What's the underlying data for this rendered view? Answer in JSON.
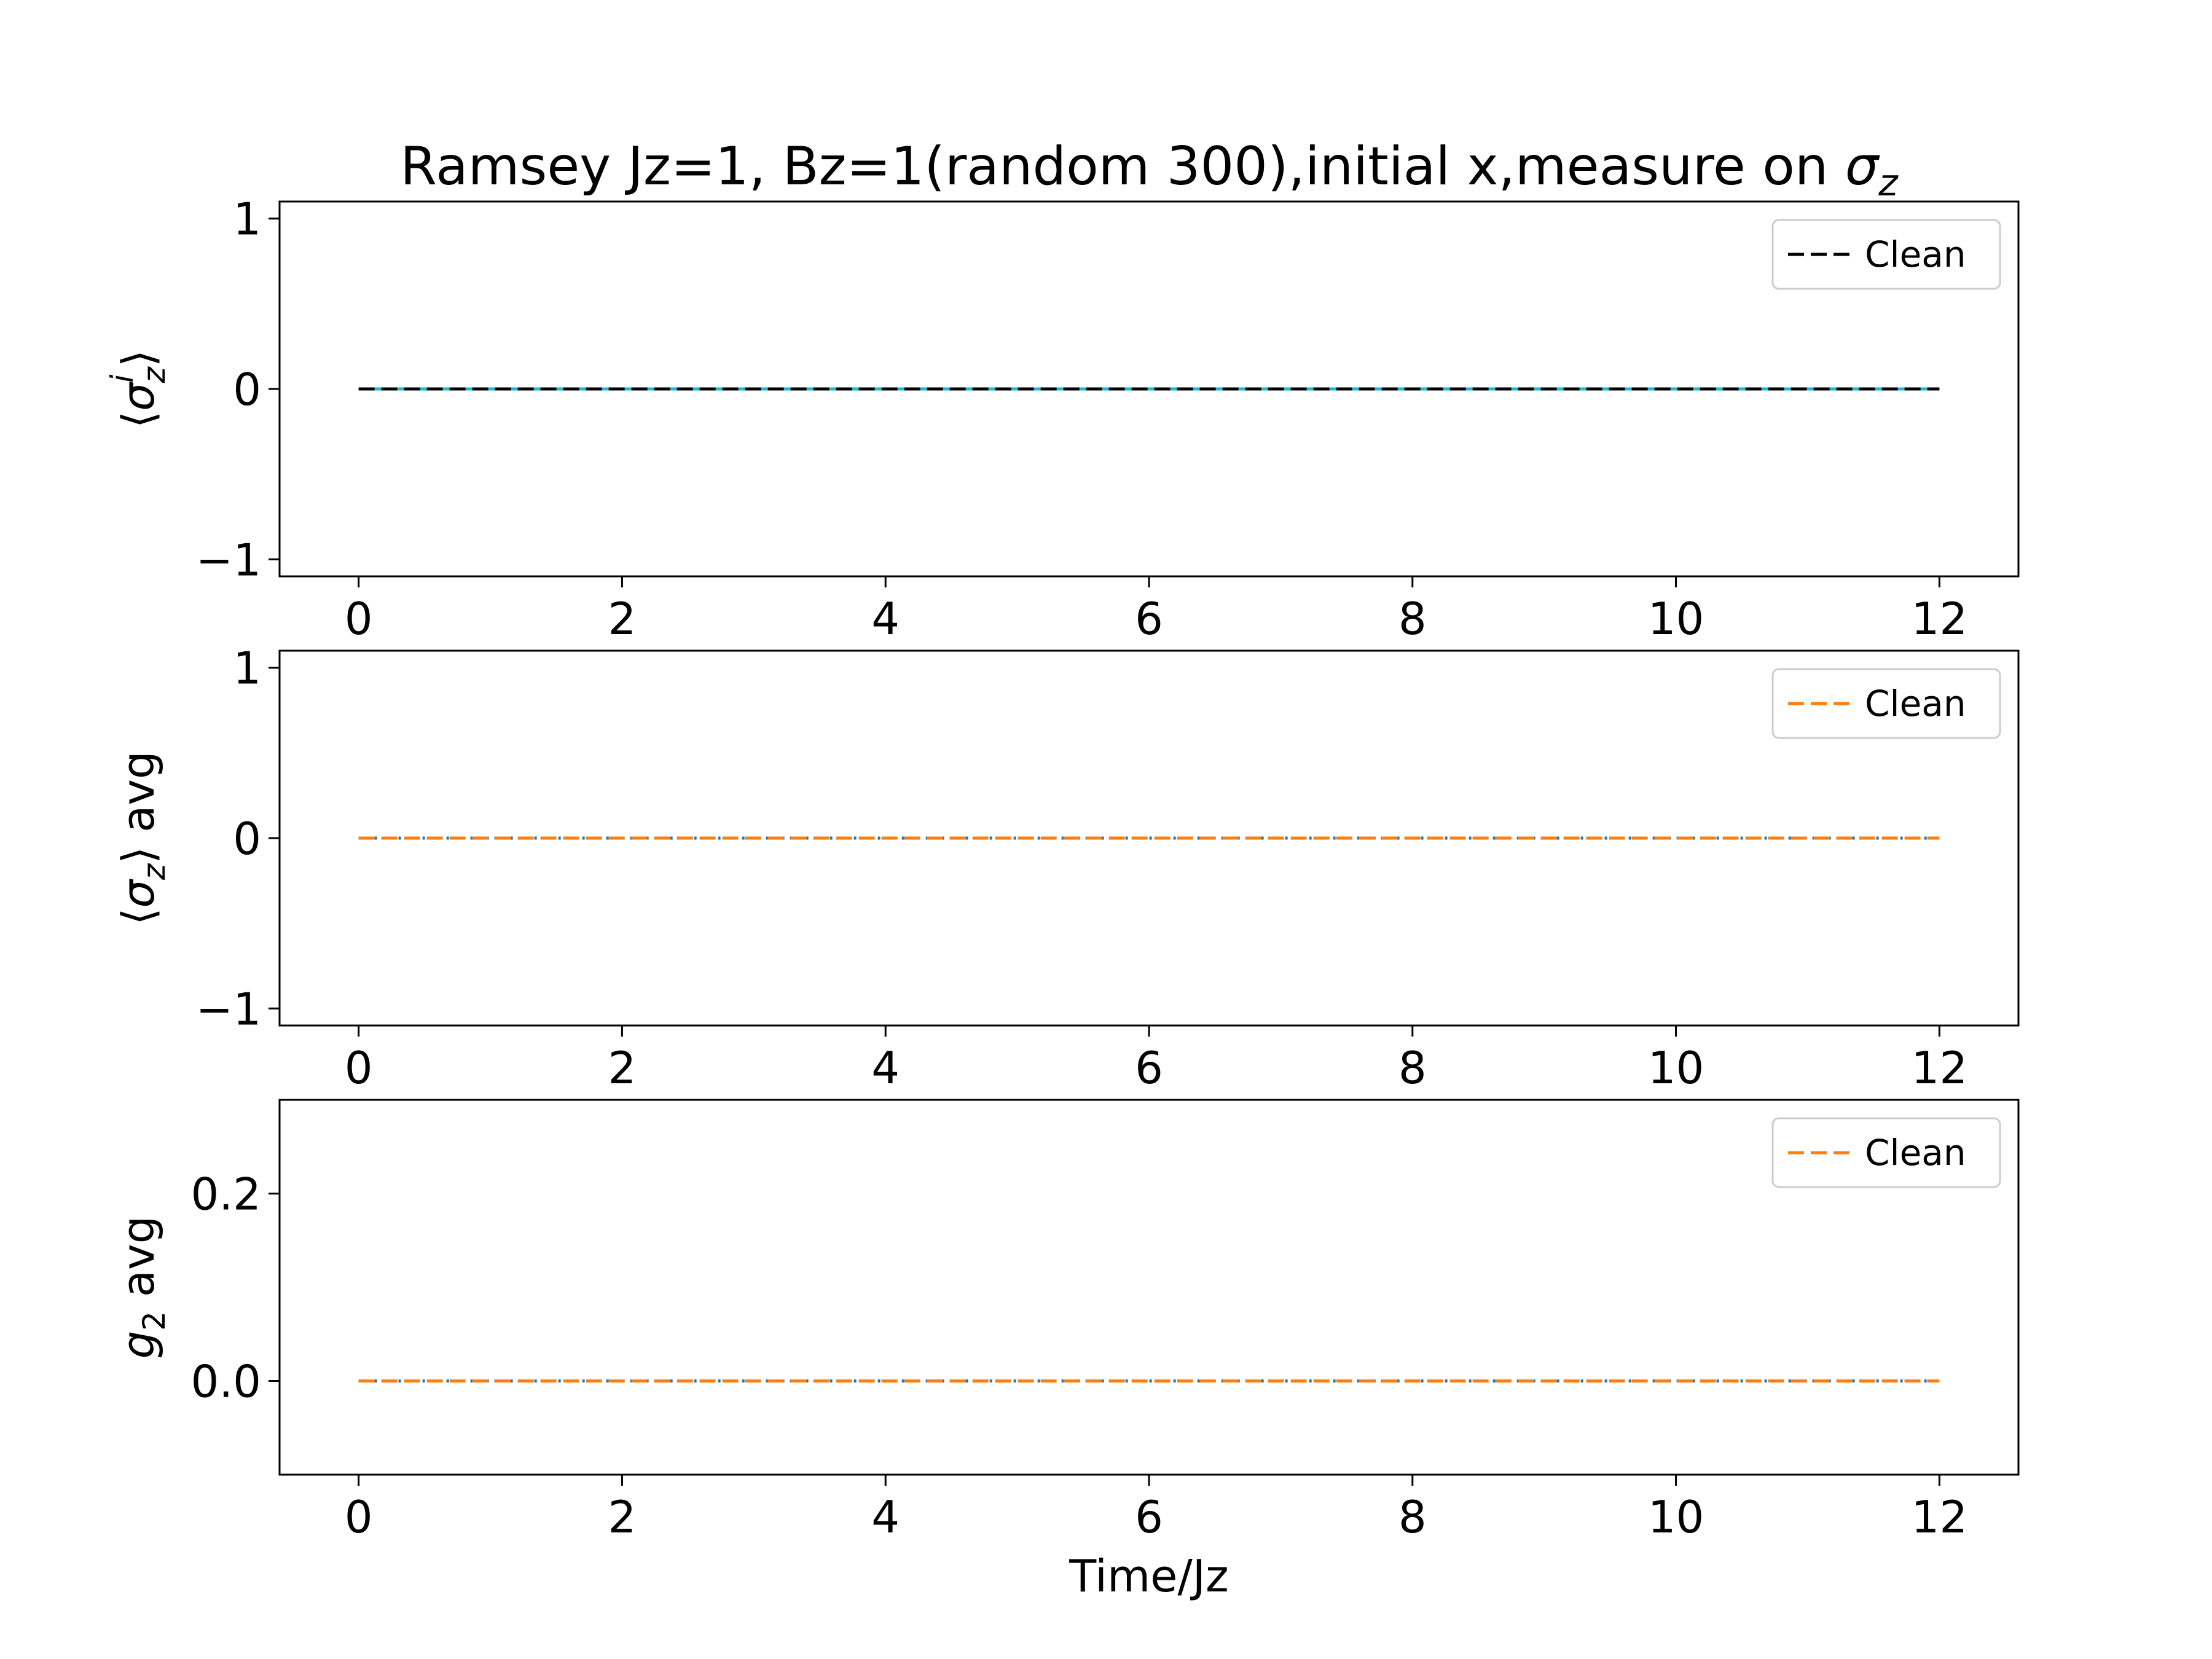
{
  "figure": {
    "title_main": "Ramsey Jz=1, Bz=1(random 300),initial x,measure on ",
    "title_math": "σ",
    "title_sub": "z"
  },
  "chart_data": [
    {
      "type": "line",
      "ylabel": {
        "open": "⟨",
        "sym": "σ",
        "sub": "z",
        "sup": "i",
        "close": "⟩",
        "tail": ""
      },
      "xlim": [
        -0.6,
        12.6
      ],
      "ylim": [
        -1.1,
        1.1
      ],
      "xticks": [
        0,
        2,
        4,
        6,
        8,
        10,
        12
      ],
      "yticks": [
        -1,
        0,
        1
      ],
      "ytick_labels": [
        "−1",
        "0",
        "1"
      ],
      "grid": false,
      "legend_position": "top-right",
      "legend": [
        "Clean"
      ],
      "series": [
        {
          "name": "Clean",
          "style": "dashed",
          "color": "#000000",
          "x": [
            0,
            12
          ],
          "y": [
            0,
            0
          ]
        },
        {
          "style": "solid",
          "color": "#17becf",
          "x": [
            0,
            12
          ],
          "y": [
            0,
            0
          ]
        }
      ]
    },
    {
      "type": "line",
      "ylabel": {
        "open": "⟨",
        "sym": "σ",
        "sub": "z",
        "sup": "",
        "close": "⟩",
        "tail": " avg"
      },
      "xlim": [
        -0.6,
        12.6
      ],
      "ylim": [
        -1.1,
        1.1
      ],
      "xticks": [
        0,
        2,
        4,
        6,
        8,
        10,
        12
      ],
      "yticks": [
        -1,
        0,
        1
      ],
      "ytick_labels": [
        "−1",
        "0",
        "1"
      ],
      "grid": false,
      "legend_position": "top-right",
      "legend": [
        "Clean"
      ],
      "series": [
        {
          "name": "Clean",
          "style": "dashed",
          "color": "#ff7f0e",
          "x": [
            0,
            12
          ],
          "y": [
            0,
            0
          ]
        },
        {
          "style": "dotted",
          "color": "#1f77b4",
          "x": [
            0,
            12
          ],
          "y": [
            0,
            0
          ]
        }
      ]
    },
    {
      "type": "line",
      "ylabel": {
        "open": "",
        "sym": "g",
        "sub": "2",
        "sup": "",
        "close": "",
        "tail": " avg"
      },
      "xlabel": "Time/Jz",
      "xlim": [
        -0.6,
        12.6
      ],
      "ylim": [
        -0.1,
        0.3
      ],
      "xticks": [
        0,
        2,
        4,
        6,
        8,
        10,
        12
      ],
      "yticks": [
        0.0,
        0.2
      ],
      "ytick_labels": [
        "0.0",
        "0.2"
      ],
      "grid": false,
      "legend_position": "top-right",
      "legend": [
        "Clean"
      ],
      "series": [
        {
          "name": "Clean",
          "style": "dashed",
          "color": "#ff7f0e",
          "x": [
            0,
            12
          ],
          "y": [
            0,
            0
          ]
        },
        {
          "style": "dotted",
          "color": "#1f77b4",
          "x": [
            0,
            12
          ],
          "y": [
            0,
            0
          ]
        }
      ]
    }
  ]
}
